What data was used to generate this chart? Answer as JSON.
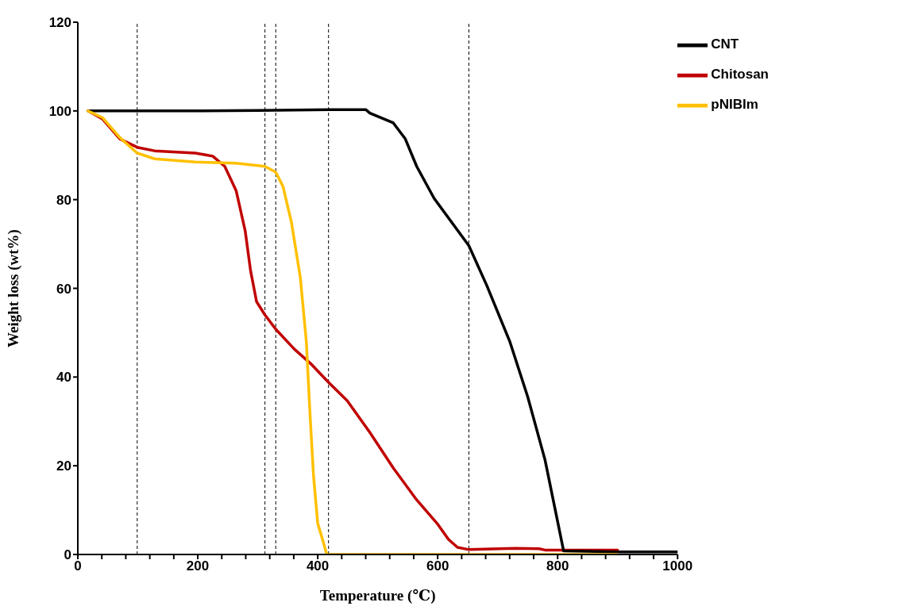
{
  "chart_data": {
    "type": "line",
    "xlabel": "Temperature (℃)",
    "ylabel": "Weight loss (wt%)",
    "xlim": [
      0,
      1000
    ],
    "ylim": [
      0,
      120
    ],
    "xticks": [
      0,
      {
        "value": 40,
        "label": null
      },
      {
        "value": 80,
        "label": null
      },
      {
        "value": 120,
        "label": null
      },
      {
        "value": 160,
        "label": null
      },
      200,
      {
        "value": 240,
        "label": null
      },
      {
        "value": 280,
        "label": null
      },
      {
        "value": 320,
        "label": null
      },
      {
        "value": 360,
        "label": null
      },
      400,
      {
        "value": 440,
        "label": null
      },
      {
        "value": 480,
        "label": null
      },
      {
        "value": 520,
        "label": null
      },
      {
        "value": 560,
        "label": null
      },
      600,
      {
        "value": 640,
        "label": null
      },
      {
        "value": 680,
        "label": null
      },
      {
        "value": 720,
        "label": null
      },
      {
        "value": 760,
        "label": null
      },
      800,
      {
        "value": 840,
        "label": null
      },
      {
        "value": 880,
        "label": null
      },
      {
        "value": 920,
        "label": null
      },
      {
        "value": 960,
        "label": null
      },
      1000
    ],
    "yticks": [
      0,
      20,
      40,
      60,
      80,
      100,
      120
    ],
    "grid": false,
    "legend": "top right",
    "marker": "none",
    "line_style": "solid",
    "series": [
      {
        "name": "Chitosan",
        "color": "#c00000",
        "x": [
          17,
          41,
          70,
          99,
          128,
          196,
          225,
          245,
          264,
          279,
          288,
          298,
          312,
          330,
          361,
          390,
          418,
          449,
          487,
          526,
          565,
          599,
          618,
          633,
          652,
          730,
          769,
          779,
          900
        ],
        "values": [
          100,
          98.2,
          93.7,
          91.8,
          91,
          90.5,
          89.8,
          87.5,
          82,
          73,
          64,
          57,
          54,
          50.8,
          46.3,
          42.8,
          38.8,
          34.7,
          27.5,
          19.5,
          12.3,
          7,
          3.4,
          1.6,
          1.1,
          1.4,
          1.3,
          1.0,
          1.0
        ]
      },
      {
        "name": "CNT",
        "color": "#000000",
        "x": [
          17,
          100,
          200,
          300,
          420,
          480,
          487,
          526,
          546,
          565,
          594,
          652,
          682,
          720,
          750,
          779,
          810,
          900,
          1000
        ],
        "values": [
          100,
          100,
          100,
          100.1,
          100.3,
          100.3,
          99.5,
          97.3,
          93.7,
          87.5,
          80.3,
          69.6,
          60.6,
          48.1,
          35.6,
          21.3,
          0.8,
          0.6,
          0.6
        ]
      },
      {
        "name": "pNIBIm",
        "color": "#ffc000",
        "x": [
          17,
          41,
          70,
          99,
          128,
          196,
          264,
          312,
          330,
          342,
          356,
          371,
          381,
          387,
          393,
          400,
          408,
          415,
          500,
          700,
          900
        ],
        "values": [
          100,
          98.5,
          94,
          90.5,
          89.2,
          88.5,
          88.2,
          87.5,
          86.2,
          83,
          75,
          62.4,
          48,
          32,
          17.7,
          7,
          3.4,
          0,
          0,
          0,
          0
        ]
      }
    ],
    "ref_lines": [
      {
        "axis": "x",
        "value": 99,
        "color": "#000000",
        "line_style": "dashed"
      },
      {
        "axis": "x",
        "value": 312,
        "color": "#000000",
        "line_style": "dashed"
      },
      {
        "axis": "x",
        "value": 330,
        "color": "#000000",
        "line_style": "dashed"
      },
      {
        "axis": "x",
        "value": 418,
        "color": "#000000",
        "line_style": "dashed"
      },
      {
        "axis": "x",
        "value": 652,
        "color": "#000000",
        "line_style": "dashed"
      }
    ]
  }
}
